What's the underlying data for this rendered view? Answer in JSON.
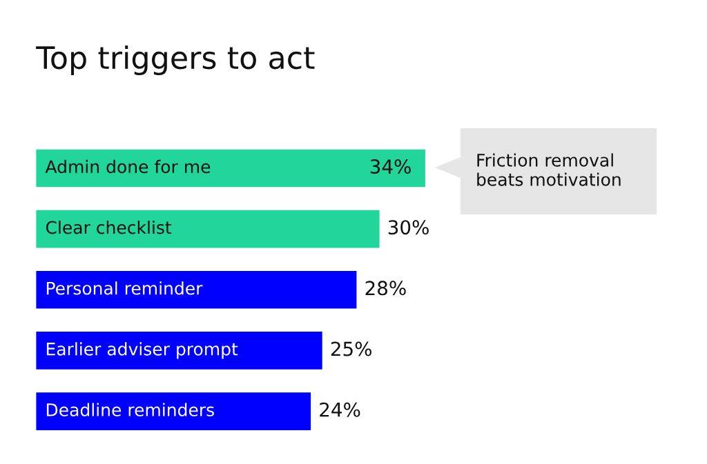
{
  "chart_data": {
    "type": "bar",
    "orientation": "horizontal",
    "title": "Top triggers to act",
    "categories": [
      "Admin done for me",
      "Clear checklist",
      "Personal reminder",
      "Earlier adviser prompt",
      "Deadline reminders"
    ],
    "values": [
      34,
      30,
      28,
      25,
      24
    ],
    "value_labels": [
      "34%",
      "30%",
      "28%",
      "25%",
      "24%"
    ],
    "colors": [
      "#21d59b",
      "#21d59b",
      "#0000ff",
      "#0000ff",
      "#0000ff"
    ],
    "annotations": [
      "Friction removal\nbeats motivation"
    ]
  }
}
